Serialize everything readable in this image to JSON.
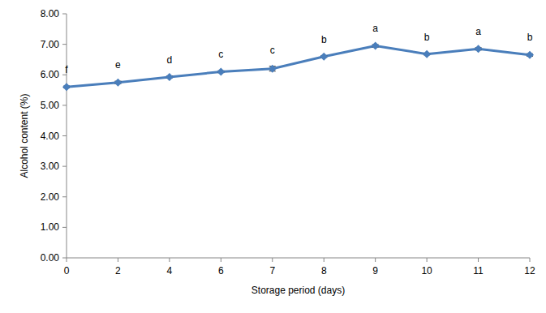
{
  "chart_data": {
    "type": "line",
    "x_label": "Storage period (days)",
    "y_label": "Alcohol content (%)",
    "categories": [
      "0",
      "2",
      "4",
      "6",
      "7",
      "8",
      "9",
      "10",
      "11",
      "12"
    ],
    "series": [
      {
        "color": "#4a7ebb",
        "marker": "diamond",
        "values": [
          5.6,
          5.75,
          5.93,
          6.1,
          6.2,
          6.6,
          6.95,
          6.68,
          6.85,
          6.65
        ],
        "errors": [
          0.03,
          0.04,
          0.03,
          0.03,
          0.08,
          0.03,
          0.04,
          0.03,
          0.04,
          0.04
        ],
        "annotations": [
          "f",
          "e",
          "d",
          "c",
          "c",
          "b",
          "a",
          "b",
          "a",
          "b"
        ]
      }
    ],
    "ylim": [
      0,
      8
    ],
    "yticks": [
      {
        "value": 0,
        "label": "0.00"
      },
      {
        "value": 1,
        "label": "1.00"
      },
      {
        "value": 2,
        "label": "2.00"
      },
      {
        "value": 3,
        "label": "3.00"
      },
      {
        "value": 4,
        "label": "4.00"
      },
      {
        "value": 5,
        "label": "5.00"
      },
      {
        "value": 6,
        "label": "6.00"
      },
      {
        "value": 7,
        "label": "7.00"
      },
      {
        "value": 8,
        "label": "8.00"
      }
    ],
    "grid": false
  }
}
